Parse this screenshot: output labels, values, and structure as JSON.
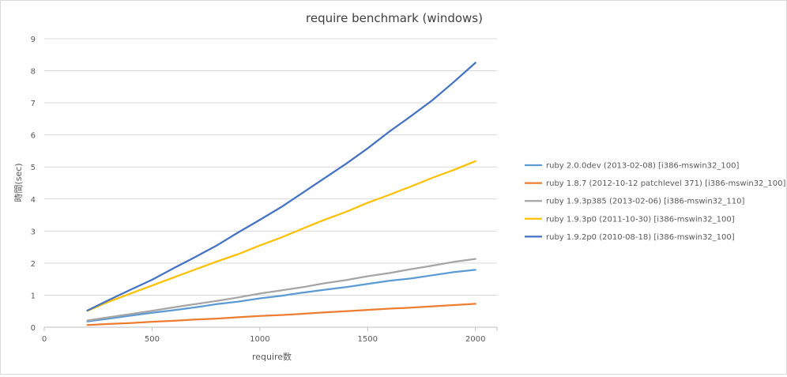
{
  "chart_data": {
    "type": "line",
    "title": "require benchmark (windows)",
    "xlabel": "require数",
    "ylabel": "時間(sec)",
    "xlim": [
      0,
      2100
    ],
    "ylim": [
      0,
      9
    ],
    "xticks": [
      0,
      500,
      1000,
      1500,
      2000
    ],
    "yticks": [
      0,
      1,
      2,
      3,
      4,
      5,
      6,
      7,
      8,
      9
    ],
    "grid": "horizontal",
    "legend_position": "right",
    "x": [
      200,
      300,
      400,
      500,
      600,
      700,
      800,
      900,
      1000,
      1100,
      1200,
      1300,
      1400,
      1500,
      1600,
      1700,
      1800,
      1900,
      2000
    ],
    "series": [
      {
        "name": "ruby 2.0.0dev (2013-02-08) [i386-mswin32_100]",
        "color": "#5b9bd5",
        "values": [
          0.18,
          0.27,
          0.36,
          0.45,
          0.53,
          0.62,
          0.72,
          0.8,
          0.9,
          0.98,
          1.08,
          1.17,
          1.25,
          1.35,
          1.45,
          1.52,
          1.62,
          1.72,
          1.79
        ]
      },
      {
        "name": "ruby 1.8.7 (2012-10-12 patchlevel 371) [i386-mswin32_100]",
        "color": "#ed7d31",
        "values": [
          0.07,
          0.1,
          0.13,
          0.17,
          0.2,
          0.24,
          0.27,
          0.31,
          0.35,
          0.38,
          0.42,
          0.46,
          0.5,
          0.54,
          0.58,
          0.61,
          0.65,
          0.69,
          0.73
        ]
      },
      {
        "name": "ruby 1.9.3p385 (2013-02-06) [i386-mswin32_110]",
        "color": "#a5a5a5",
        "values": [
          0.21,
          0.31,
          0.41,
          0.51,
          0.62,
          0.72,
          0.82,
          0.93,
          1.05,
          1.15,
          1.25,
          1.37,
          1.47,
          1.59,
          1.69,
          1.81,
          1.92,
          2.04,
          2.13
        ]
      },
      {
        "name": "ruby 1.9.3p0 (2011-10-30) [i386-mswin32_100]",
        "color": "#ffc000",
        "values": [
          0.51,
          0.8,
          1.05,
          1.3,
          1.55,
          1.8,
          2.05,
          2.28,
          2.55,
          2.8,
          3.08,
          3.35,
          3.6,
          3.88,
          4.13,
          4.39,
          4.66,
          4.91,
          5.18
        ]
      },
      {
        "name": "ruby 1.9.2p0 (2010-08-18) [i386-mswin32_100]",
        "color": "#4472c4",
        "values": [
          0.52,
          0.85,
          1.17,
          1.48,
          1.84,
          2.19,
          2.55,
          2.96,
          3.35,
          3.75,
          4.2,
          4.65,
          5.1,
          5.58,
          6.1,
          6.58,
          7.08,
          7.65,
          8.25
        ]
      }
    ]
  }
}
